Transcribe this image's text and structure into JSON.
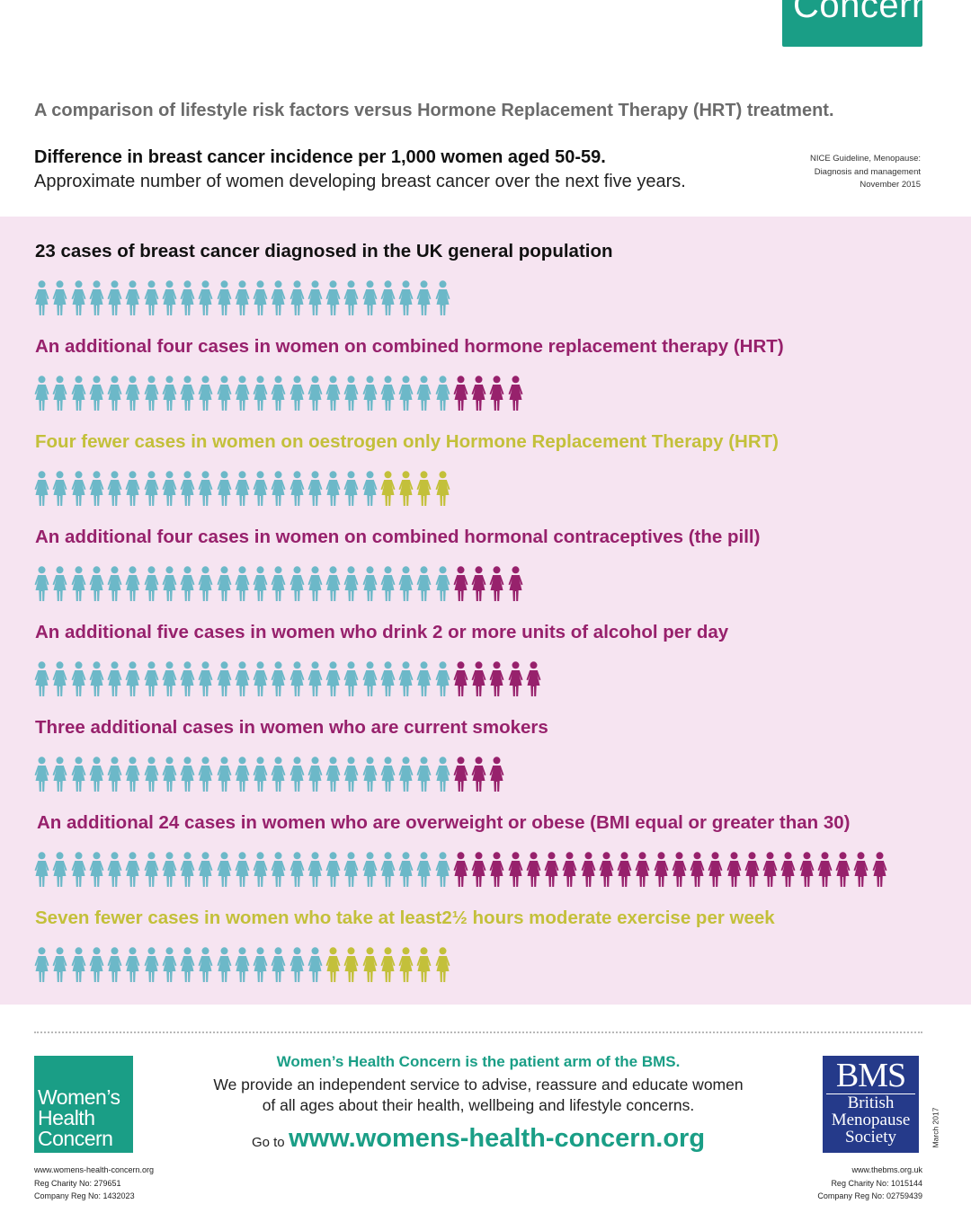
{
  "brand_tab": "Concern",
  "subtitle": "A comparison of lifestyle risk factors versus Hormone Replacement Therapy (HRT) treatment.",
  "heading": {
    "bold": "Difference in breast cancer incidence per 1,000 women aged 50-59.",
    "sub": "Approximate number of women developing breast cancer over the next five years."
  },
  "source": {
    "line1": "NICE Guideline, Menopause:",
    "line2": "Diagnosis and management",
    "line3": "November 2015"
  },
  "colors": {
    "baseline": "#6cb8c8",
    "increase": "#97216c",
    "decrease": "#c3c03a",
    "band": "#f6e4f1",
    "brand_green": "#1a9e86",
    "bms_blue": "#253a8a"
  },
  "rows": [
    {
      "title": "23 cases of breast cancer diagnosed in the UK general population",
      "baseline": 23,
      "change": 0,
      "kind": "none",
      "title_color": "#111111"
    },
    {
      "title": "An additional four cases in women on combined hormone replacement therapy (HRT)",
      "baseline": 23,
      "change": 4,
      "kind": "increase",
      "title_color": "#97216c"
    },
    {
      "title": "Four fewer  cases in women on oestrogen only Hormone Replacement Therapy (HRT)",
      "baseline": 19,
      "change": 4,
      "kind": "decrease",
      "title_color": "#c3c03a"
    },
    {
      "title": "An additional four cases in women on combined hormonal contraceptives (the pill)",
      "baseline": 23,
      "change": 4,
      "kind": "increase",
      "title_color": "#97216c"
    },
    {
      "title": "An additional five cases in women who drink 2 or more units of alcohol per day",
      "baseline": 23,
      "change": 5,
      "kind": "increase",
      "title_color": "#97216c"
    },
    {
      "title": "Three additional cases in women who are current smokers",
      "baseline": 23,
      "change": 3,
      "kind": "increase",
      "title_color": "#97216c"
    },
    {
      "title": "An additional 24 cases in women who are overweight or obese (BMI equal or greater than 30)",
      "baseline": 23,
      "change": 24,
      "kind": "increase",
      "title_color": "#97216c"
    },
    {
      "title": "Seven fewer cases in women who take at least2½ hours moderate exercise per week",
      "baseline": 16,
      "change": 7,
      "kind": "decrease",
      "title_color": "#c3c03a"
    }
  ],
  "footer": {
    "whc_logo": [
      "Women’s",
      "Health",
      "Concern"
    ],
    "center_title": "Women’s Health Concern is the patient arm of the BMS.",
    "center_body_1": "We provide an independent service to advise, reassure and educate women",
    "center_body_2": "of all ages about their health, wellbeing and lifestyle concerns.",
    "goto_label": "Go to",
    "goto_url": "www.womens-health-concern.org",
    "bms_logo": {
      "abbr": "BMS",
      "line1": "British",
      "line2": "Menopause",
      "line3": "Society"
    },
    "date": "March 2017",
    "left": [
      "www.womens-health-concern.org",
      "Reg Charity No: 279651",
      "Company Reg No: 1432023"
    ],
    "right": [
      "www.thebms.org.uk",
      "Reg Charity No: 1015144",
      "Company Reg No: 02759439"
    ]
  }
}
